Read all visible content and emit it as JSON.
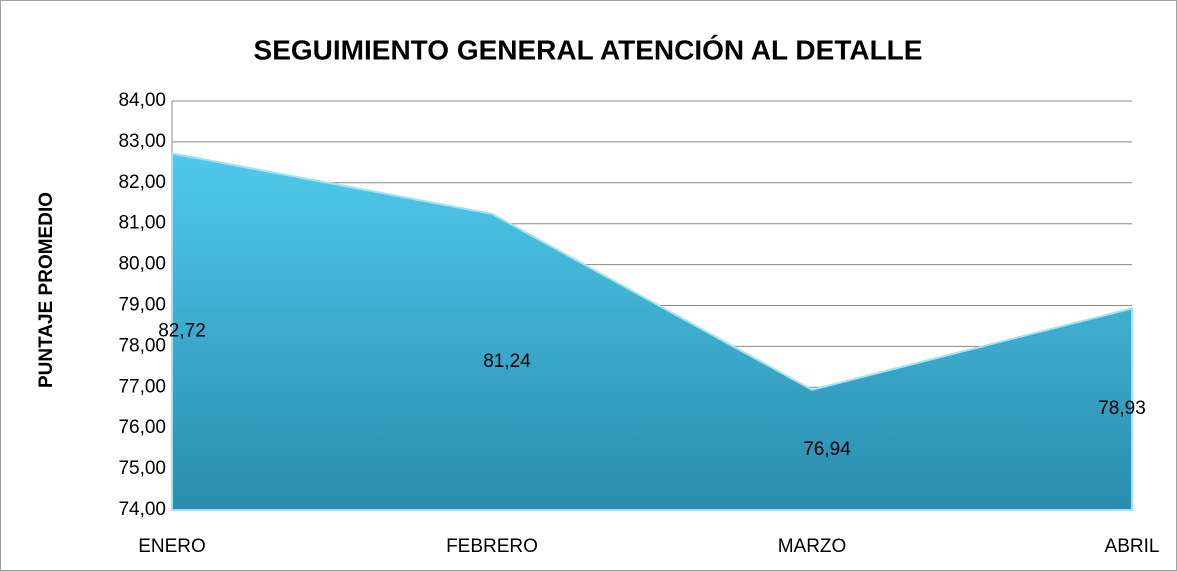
{
  "chart_data": {
    "type": "area",
    "title": "SEGUIMIENTO GENERAL ATENCIÓN AL DETALLE",
    "y_label": "PUNTAJE PROMEDIO",
    "categories": [
      "ENERO",
      "FEBRERO",
      "MARZO",
      "ABRIL"
    ],
    "values": [
      82.72,
      81.24,
      76.94,
      78.93
    ],
    "value_labels": [
      "82,72",
      "81,24",
      "76,94",
      "78,93"
    ],
    "color": "#3cb4d8",
    "ylim": [
      74,
      84
    ],
    "yticks": [
      {
        "value": 74,
        "label": "74,00"
      },
      {
        "value": 75,
        "label": "75,00"
      },
      {
        "value": 76,
        "label": "76,00"
      },
      {
        "value": 77,
        "label": "77,00"
      },
      {
        "value": 78,
        "label": "78,00"
      },
      {
        "value": 79,
        "label": "79,00"
      },
      {
        "value": 80,
        "label": "80,00"
      },
      {
        "value": 81,
        "label": "81,00"
      },
      {
        "value": 82,
        "label": "82,00"
      },
      {
        "value": 83,
        "label": "83,00"
      },
      {
        "value": 84,
        "label": "84,00"
      }
    ],
    "grid": true
  }
}
